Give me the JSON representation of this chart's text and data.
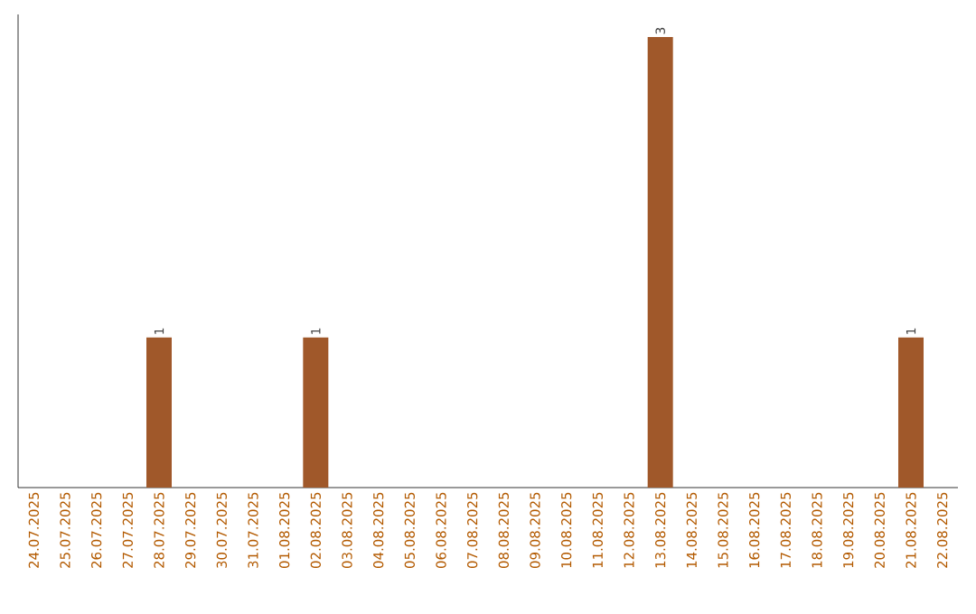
{
  "chart_data": {
    "type": "bar",
    "categories": [
      "24.07.2025",
      "25.07.2025",
      "26.07.2025",
      "27.07.2025",
      "28.07.2025",
      "29.07.2025",
      "30.07.2025",
      "31.07.2025",
      "01.08.2025",
      "02.08.2025",
      "03.08.2025",
      "04.08.2025",
      "05.08.2025",
      "06.08.2025",
      "07.08.2025",
      "08.08.2025",
      "09.08.2025",
      "10.08.2025",
      "11.08.2025",
      "12.08.2025",
      "13.08.2025",
      "14.08.2025",
      "15.08.2025",
      "16.08.2025",
      "17.08.2025",
      "18.08.2025",
      "19.08.2025",
      "20.08.2025",
      "21.08.2025",
      "22.08.2025"
    ],
    "values": [
      0,
      0,
      0,
      0,
      1,
      0,
      0,
      0,
      0,
      1,
      0,
      0,
      0,
      0,
      0,
      0,
      0,
      0,
      0,
      0,
      3,
      0,
      0,
      0,
      0,
      0,
      0,
      0,
      1,
      0
    ],
    "value_labels": [
      null,
      null,
      null,
      null,
      "1",
      null,
      null,
      null,
      null,
      "1",
      null,
      null,
      null,
      null,
      null,
      null,
      null,
      null,
      null,
      null,
      "3",
      null,
      null,
      null,
      null,
      null,
      null,
      null,
      "1",
      null
    ],
    "color": "#a0582a",
    "ylim": [
      0,
      3.15
    ],
    "grid": false
  }
}
